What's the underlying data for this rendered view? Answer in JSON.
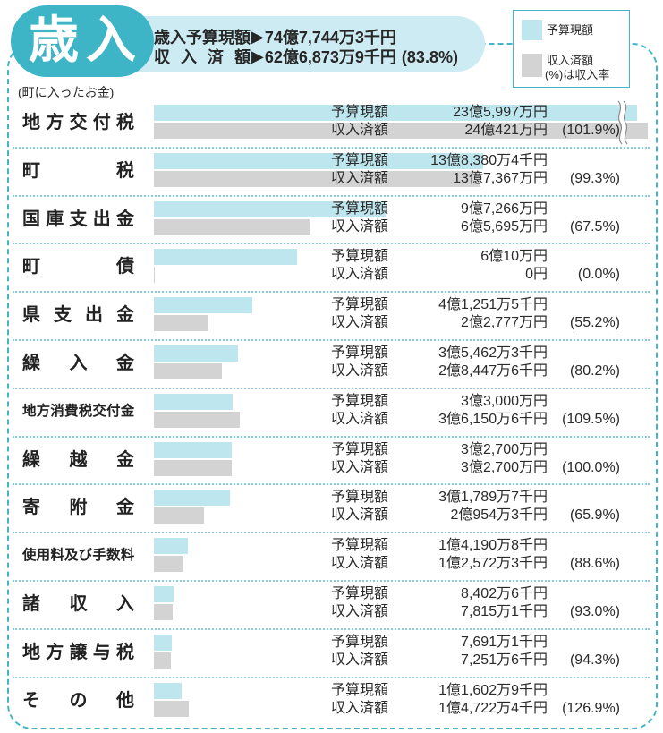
{
  "header": {
    "badge": "歳入",
    "budget_label": "歳入予算現額",
    "received_label": "収入済額",
    "arrow": "▶",
    "budget_total": "74億7,744万3千円",
    "received_total": "62億6,873万9千円",
    "received_rate": "(83.8%)"
  },
  "legend": {
    "note": "(%)は収入率"
  },
  "note": "(町に入ったお金)",
  "colors": {
    "accent": "#3eb4c7",
    "header_fill": "#cdebf2",
    "budget_bar": "#bee6ef",
    "received_bar": "#d3d3d3",
    "divider": "#86cdd9"
  },
  "chart_data": {
    "type": "bar",
    "orientation": "horizontal",
    "unit": "円",
    "legend_position": "top-right",
    "categories": [
      "地方交付税",
      "町税",
      "国庫支出金",
      "町債",
      "県支出金",
      "繰入金",
      "地方消費税交付金",
      "繰越金",
      "寄附金",
      "使用料及び手数料",
      "諸収入",
      "地方譲与税",
      "その他"
    ],
    "series": [
      {
        "name": "予算現額",
        "values": [
          2359970000,
          1383804000,
          972660000,
          600100000,
          412515000,
          354623000,
          330000000,
          327000000,
          317897000,
          141908000,
          84026000,
          76911000,
          116029000
        ]
      },
      {
        "name": "収入済額",
        "values": [
          2404210000,
          1373670000,
          656950000,
          0,
          227770000,
          284476000,
          361506000,
          327000000,
          209543000,
          125723000,
          78151000,
          72516000,
          147224000
        ]
      }
    ],
    "budget_labels": [
      "23億5,997万円",
      "13億8,380万4千円",
      "9億7,266万円",
      "6億10万円",
      "4億1,251万5千円",
      "3億5,462万3千円",
      "3億3,000万円",
      "3億2,700万円",
      "3億1,789万7千円",
      "1億4,190万8千円",
      "8,402万6千円",
      "7,691万1千円",
      "1億1,602万9千円"
    ],
    "received_labels": [
      "24億421万円",
      "13億7,367万円",
      "6億5,695万円",
      "0円",
      "2億2,777万円",
      "2億8,447万6千円",
      "3億6,150万6千円",
      "3億2,700万円",
      "2億954万3千円",
      "1億2,572万3千円",
      "7,815万1千円",
      "7,251万6千円",
      "1億4,722万4千円"
    ],
    "rates": [
      101.9,
      99.3,
      67.5,
      0.0,
      55.2,
      80.2,
      109.5,
      100.0,
      65.9,
      88.6,
      93.0,
      94.3,
      126.9
    ],
    "rate_labels": [
      "(101.9%)",
      "(99.3%)",
      "(67.5%)",
      "(0.0%)",
      "(55.2%)",
      "(80.2%)",
      "(109.5%)",
      "(100.0%)",
      "(65.9%)",
      "(88.6%)",
      "(93.0%)",
      "(94.3%)",
      "(126.9%)"
    ]
  }
}
